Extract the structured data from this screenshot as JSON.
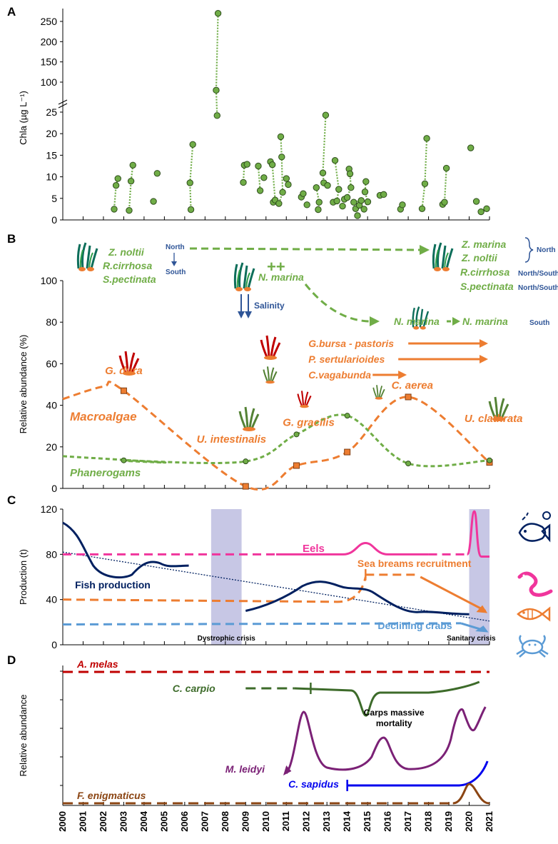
{
  "chart_data": [
    {
      "panel": "A",
      "type": "scatter",
      "ylabel": "Chla (µg L⁻¹)",
      "yticks_lower": [
        0,
        5,
        10,
        15,
        20,
        25
      ],
      "yticks_upper": [
        100,
        150,
        200,
        250
      ],
      "colors": {
        "fill": "#70ad47",
        "stroke": "#2e4d1c",
        "link": "#70ad47"
      },
      "pairs": [
        [
          2002.4,
          2.5,
          2002.5,
          8.0,
          2002.6,
          9.6
        ],
        [
          2003.2,
          2.2,
          2003.3,
          9.0,
          2003.4,
          12.7
        ],
        [
          2004.5,
          4.3
        ],
        [
          2004.7,
          10.8
        ],
        [
          2006.5,
          2.4,
          2006.45,
          8.6,
          2006.6,
          17.5
        ],
        [
          2007.9,
          24.2,
          2007.85,
          80,
          2007.95,
          270
        ],
        [
          2009.3,
          8.7,
          2009.35,
          12.7,
          2009.5,
          12.9
        ],
        [
          2010.2,
          6.8,
          2010.1,
          12.5
        ],
        [
          2010.4,
          9.8
        ],
        [
          2010.75,
          13.5,
          2010.85,
          12.8,
          2010.9,
          4.1,
          2011.0,
          4.6
        ],
        [
          2011.2,
          3.8,
          2011.3,
          19.3,
          2011.35,
          14.6,
          2011.4,
          6.4
        ],
        [
          2011.6,
          9.6,
          2011.7,
          8.2
        ],
        [
          2012.4,
          5.3,
          2012.5,
          6.1
        ],
        [
          2012.7,
          3.5
        ],
        [
          2013.3,
          2.4,
          2013.2,
          7.5,
          2013.35,
          4.1
        ],
        [
          2013.55,
          10.9,
          2013.7,
          24.3,
          2013.6,
          8.6,
          2013.8,
          8.0
        ],
        [
          2014.1,
          4.1,
          2014.2,
          13.8,
          2014.3,
          4.4,
          2014.4,
          7.1
        ],
        [
          2014.6,
          3.2,
          2014.7,
          4.8,
          2014.85,
          5.2,
          2014.95,
          11.8,
          2015.0,
          10.7,
          2015.05,
          7.5
        ],
        [
          2015.2,
          4.1,
          2015.3,
          2.6,
          2015.4,
          1.0,
          2015.5,
          3.4,
          2015.6,
          4.5
        ],
        [
          2015.75,
          2.5,
          2015.85,
          8.9,
          2015.95,
          4.2,
          2015.8,
          6.5
        ],
        [
          2016.6,
          5.7,
          2016.8,
          5.9
        ],
        [
          2017.7,
          2.5,
          2017.8,
          3.5
        ],
        [
          2018.85,
          2.6,
          2019.0,
          8.4,
          2019.1,
          18.9
        ],
        [
          2019.95,
          3.6,
          2020.05,
          4.1,
          2020.15,
          12.0
        ],
        [
          2021.45,
          16.7
        ],
        [
          2021.75,
          4.3
        ],
        [
          2022.0,
          1.9
        ],
        [
          2022.3,
          2.6
        ]
      ]
    },
    {
      "panel": "B",
      "type": "line",
      "ylabel": "Relative abundance (%)",
      "ylim": [
        0,
        100
      ],
      "yticks": [
        0,
        20,
        40,
        60,
        80,
        100
      ],
      "series": [
        {
          "name": "Macroalgae",
          "color": "#ed7d31",
          "points": [
            [
              2003,
              47
            ],
            [
              2009,
              1
            ],
            [
              2011.5,
              11
            ],
            [
              2014,
              17.5
            ],
            [
              2017,
              44
            ],
            [
              2021,
              12.5
            ]
          ]
        },
        {
          "name": "Phanerogams",
          "color": "#70ad47",
          "points": [
            [
              2003,
              13.5
            ],
            [
              2009,
              13
            ],
            [
              2011.5,
              26
            ],
            [
              2014,
              35
            ],
            [
              2017,
              12
            ],
            [
              2021,
              13.5
            ]
          ]
        }
      ],
      "annotations": [
        {
          "label": "G. dura",
          "x": 2003,
          "y": 55
        },
        {
          "label": "U. intestinalis",
          "x": 2008.3,
          "y": 22
        },
        {
          "label": "G. gracilis",
          "x": 2012.1,
          "y": 30
        },
        {
          "label": "C. aerea",
          "x": 2017.2,
          "y": 48
        },
        {
          "label": "U. clathrata",
          "x": 2021.2,
          "y": 32
        }
      ],
      "species_top_left": [
        "Z. noltii",
        "R.cirrhosa",
        "S.pectinata"
      ],
      "north_south_label": [
        "North",
        "South"
      ],
      "n_marina_label": "N. marina",
      "plus_marks": "++",
      "salinity_label": "Salinity",
      "right_species": [
        {
          "name": "Z. marina",
          "region": ""
        },
        {
          "name": "Z. noltii",
          "region": ""
        },
        {
          "name": "R.cirrhosa",
          "region": "North/South"
        },
        {
          "name": "S.pectinata",
          "region": "North/South"
        }
      ],
      "north_label": "North",
      "n_marina_mid": "N. marina",
      "n_marina_right": "N. marina",
      "south_label": "South",
      "macro_species_bars": [
        {
          "name": "G.bursa - pastoris",
          "x_start": 2013,
          "x_end": 2021
        },
        {
          "name": "P. sertularioides",
          "x_start": 2013,
          "x_end": 2021
        },
        {
          "name": "C.vagabunda",
          "x_start": 2013,
          "x_end": 2017
        }
      ],
      "macro_label": "Macroalgae",
      "phan_label": "Phanerogams"
    },
    {
      "panel": "C",
      "type": "line",
      "ylabel": "Production (t)",
      "ylim": [
        0,
        120
      ],
      "yticks": [
        0,
        40,
        80,
        120
      ],
      "crisis": [
        {
          "label": "Dystrophic crisis",
          "x0": 2007.3,
          "x1": 2008.8
        },
        {
          "label": "Sanitary crisis",
          "x0": 2020.0,
          "x1": 2021.0
        }
      ],
      "series": [
        {
          "name": "Eels",
          "color": "#f0359c",
          "y": 80
        },
        {
          "name": "Sea breams recruitment",
          "color": "#ed7d31",
          "y": 40
        },
        {
          "name": "Fish production",
          "color": "#002060"
        },
        {
          "name": "Declining crabs",
          "color": "#5b9bd5",
          "y": 18
        }
      ]
    },
    {
      "panel": "D",
      "type": "line",
      "ylabel": "Relative abundance",
      "series": [
        {
          "name": "A. melas",
          "color": "#c00000"
        },
        {
          "name": "C. carpio",
          "color": "#3d6b2a"
        },
        {
          "name": "M. leidyi",
          "color": "#7b2176"
        },
        {
          "name": "C. sapidus",
          "color": "#0000ee"
        },
        {
          "name": "F. enigmaticus",
          "color": "#8b4513"
        }
      ],
      "annotation": "Carps massive mortality"
    }
  ],
  "panels": {
    "a": "A",
    "b": "B",
    "c": "C",
    "d": "D"
  },
  "years": [
    "2000",
    "2001",
    "2002",
    "2003",
    "2004",
    "2005",
    "2006",
    "2007",
    "2008",
    "2009",
    "2010",
    "2011",
    "2012",
    "2013",
    "2014",
    "2015",
    "2016",
    "2017",
    "2018",
    "2019",
    "2020",
    "2021"
  ],
  "icons": [
    "seagrass-icon",
    "red-algae-icon",
    "green-algae-icon",
    "fish-icon",
    "eel-icon",
    "sea-bream-icon",
    "crab-icon"
  ]
}
